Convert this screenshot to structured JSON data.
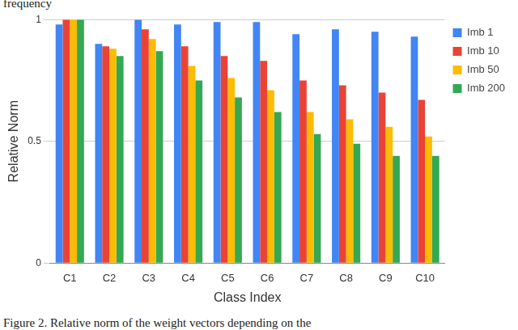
{
  "chart_data": {
    "type": "bar",
    "x_label": "Class Index",
    "y_label": "Relative Norm",
    "annotations": [
      "frequency",
      "Figure 2. Relative norm of the weight vectors depending on the"
    ],
    "categories": [
      "C1",
      "C2",
      "C3",
      "C4",
      "C5",
      "C6",
      "C7",
      "C8",
      "C9",
      "C10"
    ],
    "series": [
      {
        "name": "Imb 1",
        "color": "#4285f4",
        "values": [
          0.98,
          0.9,
          1.0,
          0.98,
          0.99,
          0.99,
          0.94,
          0.96,
          0.95,
          0.93
        ]
      },
      {
        "name": "Imb 10",
        "color": "#ea4335",
        "values": [
          1.0,
          0.89,
          0.96,
          0.89,
          0.85,
          0.83,
          0.75,
          0.73,
          0.7,
          0.67
        ]
      },
      {
        "name": "Imb 50",
        "color": "#fbbc04",
        "values": [
          1.0,
          0.88,
          0.92,
          0.81,
          0.76,
          0.71,
          0.62,
          0.59,
          0.56,
          0.52
        ]
      },
      {
        "name": "Imb 200",
        "color": "#34a853",
        "values": [
          1.0,
          0.85,
          0.87,
          0.75,
          0.68,
          0.62,
          0.53,
          0.49,
          0.44,
          0.44
        ]
      }
    ],
    "ylim": [
      0,
      1
    ],
    "yticks": [
      0,
      0.5,
      1
    ],
    "grid": true,
    "legend": "top-right"
  }
}
